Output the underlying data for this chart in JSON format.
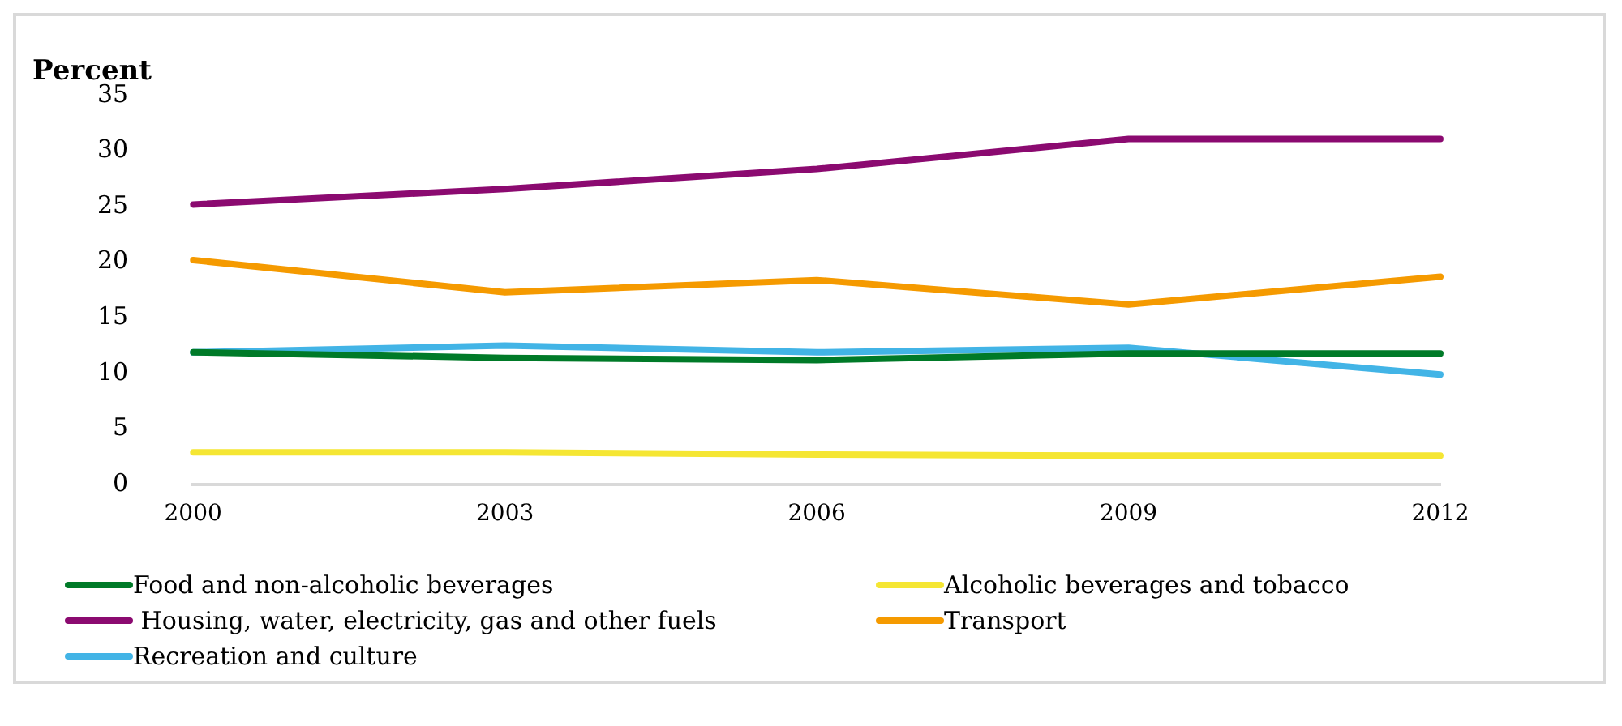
{
  "chart_data": {
    "type": "line",
    "ylabel": "Percent",
    "categories": [
      "2000",
      "2003",
      "2006",
      "2009",
      "2012"
    ],
    "ylim": [
      0,
      35
    ],
    "yticks": [
      0,
      5,
      10,
      15,
      20,
      25,
      30,
      35
    ],
    "grid": false,
    "legend": "bottom",
    "marker": "none",
    "line_style": "solid",
    "series": [
      {
        "name": "Food and non-alcoholic beverages",
        "color": "#007a28",
        "values": [
          11.9,
          11.4,
          11.2,
          11.8,
          11.8
        ]
      },
      {
        "name": "Alcoholic beverages and tobacco",
        "color": "#f5e633",
        "values": [
          2.9,
          2.9,
          2.7,
          2.6,
          2.6
        ]
      },
      {
        "name": " Housing, water, electricity, gas and other fuels",
        "color": "#8b0a70",
        "values": [
          25.2,
          26.6,
          28.4,
          31.1,
          31.1
        ]
      },
      {
        "name": "Transport",
        "color": "#f59a00",
        "values": [
          20.2,
          17.3,
          18.4,
          16.2,
          18.7
        ]
      },
      {
        "name": "Recreation and culture",
        "color": "#42b4e6",
        "values": [
          11.9,
          12.5,
          11.9,
          12.3,
          9.9
        ]
      }
    ]
  }
}
